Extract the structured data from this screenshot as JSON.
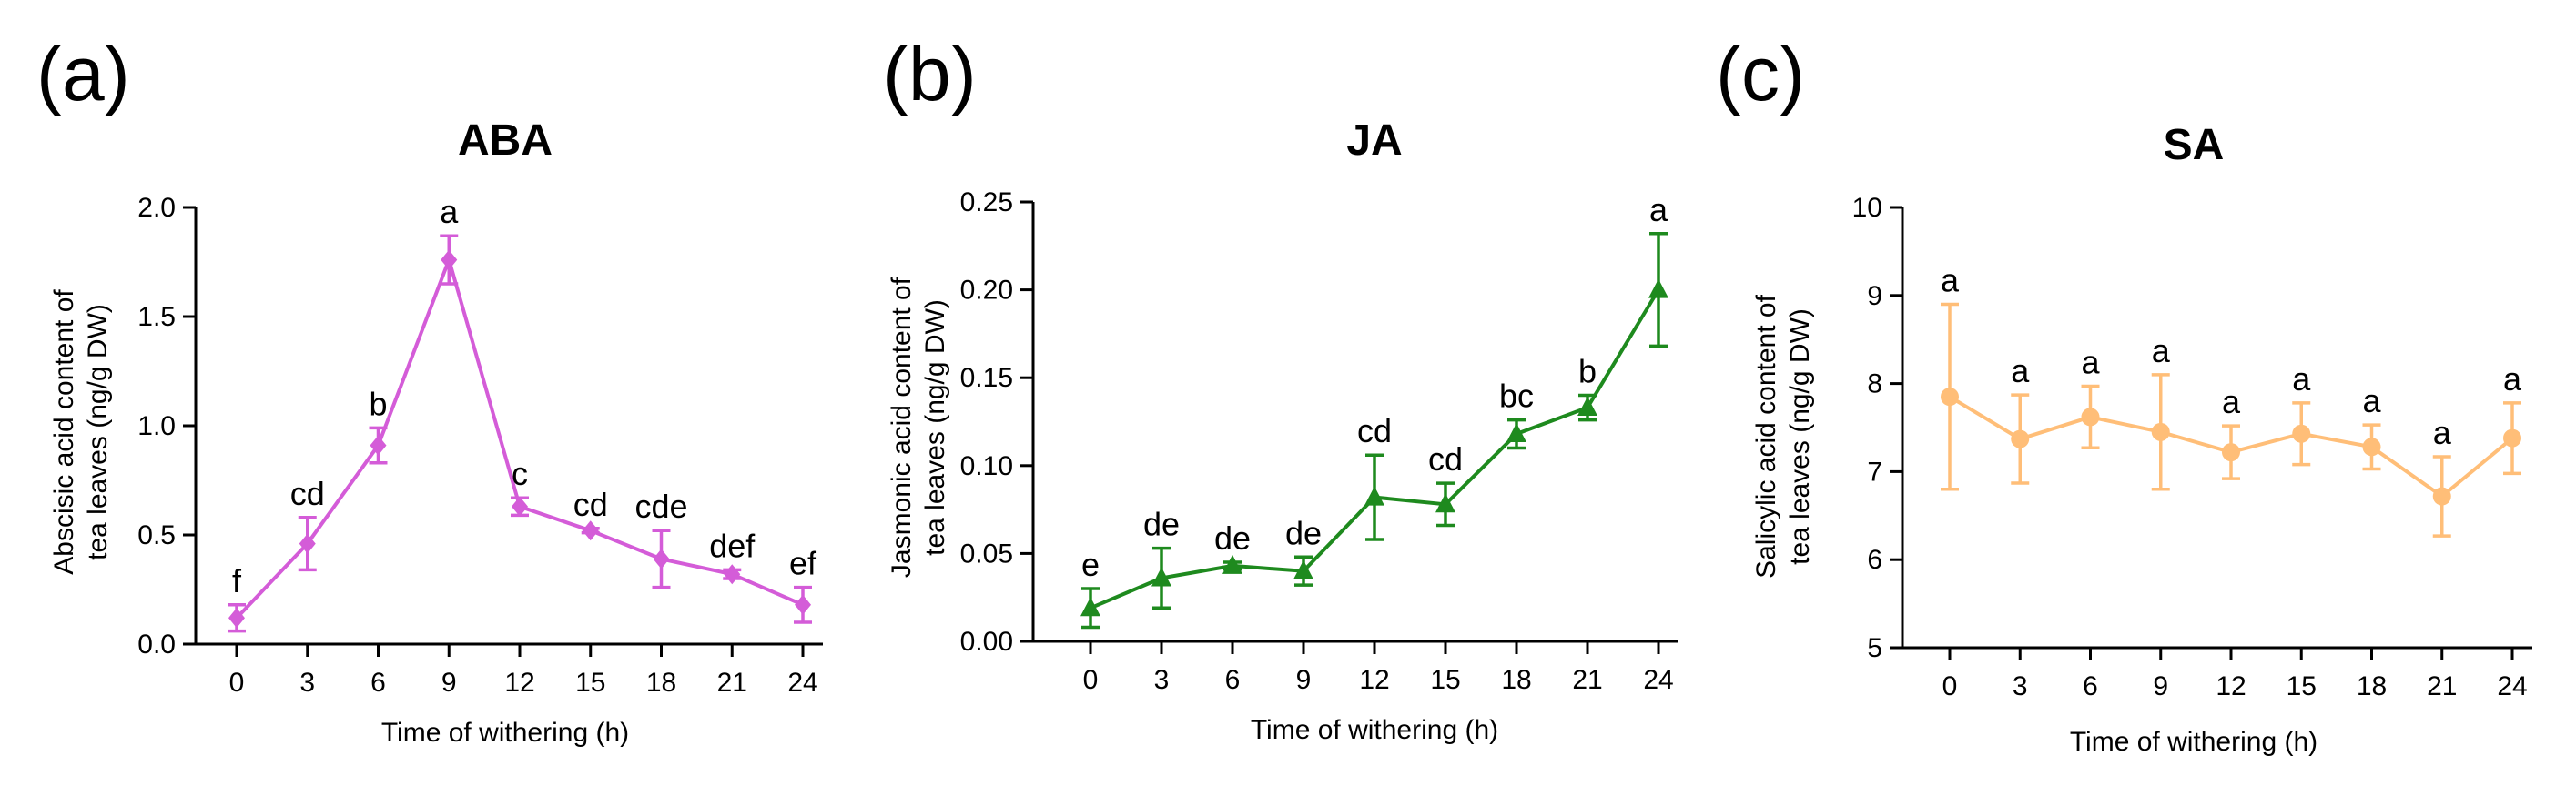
{
  "chart_data": [
    {
      "panel": "(a)",
      "type": "line",
      "title": "ABA",
      "color": "#D45CD8",
      "marker": "diamond",
      "xlabel": "Time of withering (h)",
      "ylabel_lines": [
        "Abscisic acid content of",
        "tea leaves (ng/g DW)"
      ],
      "x": [
        0,
        3,
        6,
        9,
        12,
        15,
        18,
        21,
        24
      ],
      "x_tick_labels": [
        "0",
        "3",
        "6",
        "9",
        "12",
        "15",
        "18",
        "21",
        "24"
      ],
      "values": [
        0.12,
        0.46,
        0.91,
        1.76,
        0.63,
        0.52,
        0.39,
        0.32,
        0.18
      ],
      "errors": [
        0.06,
        0.12,
        0.08,
        0.11,
        0.04,
        0.01,
        0.13,
        0.02,
        0.08
      ],
      "labels": [
        "f",
        "cd",
        "b",
        "a",
        "c",
        "cd",
        "cde",
        "def",
        "ef"
      ],
      "ylim": [
        0,
        2.0
      ],
      "y_ticks": [
        0,
        0.5,
        1.0,
        1.5,
        2.0
      ],
      "y_tick_labels": [
        "0.0",
        "0.5",
        "1.0",
        "1.5",
        "2.0"
      ]
    },
    {
      "panel": "(b)",
      "type": "line",
      "title": "JA",
      "color": "#1E8A1E",
      "marker": "triangle",
      "xlabel": "Time of withering (h)",
      "ylabel_lines": [
        "Jasmonic acid content of",
        "tea leaves (ng/g DW)"
      ],
      "x": [
        0,
        3,
        6,
        9,
        12,
        15,
        18,
        21,
        24
      ],
      "x_tick_labels": [
        "0",
        "3",
        "6",
        "9",
        "12",
        "15",
        "18",
        "21",
        "24"
      ],
      "values": [
        0.019,
        0.036,
        0.043,
        0.04,
        0.082,
        0.078,
        0.118,
        0.133,
        0.2
      ],
      "errors": [
        0.011,
        0.017,
        0.002,
        0.008,
        0.024,
        0.012,
        0.008,
        0.007,
        0.032
      ],
      "labels": [
        "e",
        "de",
        "de",
        "de",
        "cd",
        "cd",
        "bc",
        "b",
        "a"
      ],
      "ylim": [
        0,
        0.25
      ],
      "y_ticks": [
        0,
        0.05,
        0.1,
        0.15,
        0.2,
        0.25
      ],
      "y_tick_labels": [
        "0.00",
        "0.05",
        "0.10",
        "0.15",
        "0.20",
        "0.25"
      ]
    },
    {
      "panel": "(c)",
      "type": "line",
      "title": "SA",
      "color": "#FFBE78",
      "marker": "circle",
      "xlabel": "Time of withering (h)",
      "ylabel_lines": [
        "Salicylic acid content of",
        "tea leaves (ng/g DW)"
      ],
      "x": [
        0,
        3,
        6,
        9,
        12,
        15,
        18,
        21,
        24
      ],
      "x_tick_labels": [
        "0",
        "3",
        "6",
        "9",
        "12",
        "15",
        "18",
        "21",
        "24"
      ],
      "values": [
        7.85,
        7.37,
        7.62,
        7.45,
        7.22,
        7.43,
        7.28,
        6.72,
        7.38
      ],
      "errors": [
        1.05,
        0.5,
        0.35,
        0.65,
        0.3,
        0.35,
        0.25,
        0.45,
        0.4
      ],
      "labels": [
        "a",
        "a",
        "a",
        "a",
        "a",
        "a",
        "a",
        "a",
        "a"
      ],
      "ylim": [
        5,
        10
      ],
      "y_ticks": [
        5,
        6,
        7,
        8,
        9,
        10
      ],
      "y_tick_labels": [
        "5",
        "6",
        "7",
        "8",
        "9",
        "10"
      ]
    }
  ]
}
